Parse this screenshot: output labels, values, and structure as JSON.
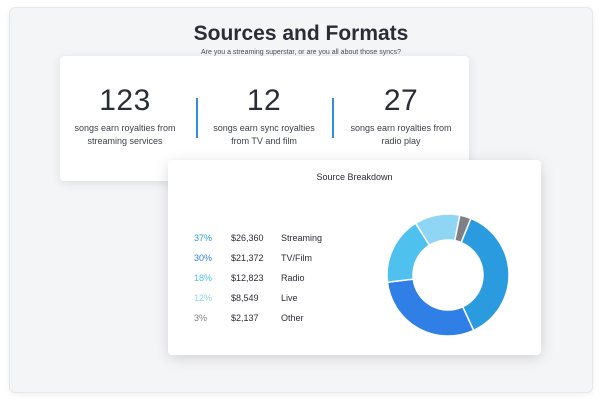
{
  "header": {
    "title": "Sources and Formats",
    "subtitle": "Are you a streaming superstar, or are you all about those syncs?"
  },
  "stats": [
    {
      "number": "123",
      "desc_line1": "songs earn royalties from",
      "desc_line2": "streaming services"
    },
    {
      "number": "12",
      "desc_line1": "songs earn sync royalties",
      "desc_line2": "from TV and film"
    },
    {
      "number": "27",
      "desc_line1": "songs earn royalties from",
      "desc_line2": "radio play"
    }
  ],
  "breakdown": {
    "title": "Source Breakdown",
    "rows": [
      {
        "percent": "37%",
        "amount": "$26,360",
        "source": "Streaming",
        "color": "#2a9bde"
      },
      {
        "percent": "30%",
        "amount": "$21,372",
        "source": "TV/Film",
        "color": "#2f7fe6"
      },
      {
        "percent": "18%",
        "amount": "$12,823",
        "source": "Radio",
        "color": "#4fc1ee"
      },
      {
        "percent": "12%",
        "amount": "$8,549",
        "source": "Live",
        "color": "#8fd6f5"
      },
      {
        "percent": "3%",
        "amount": "$2,137",
        "source": "Other",
        "color": "#7f8085"
      }
    ]
  },
  "chart_data": {
    "type": "pie",
    "categories": [
      "Streaming",
      "TV/Film",
      "Radio",
      "Live",
      "Other"
    ],
    "values": [
      37,
      30,
      18,
      12,
      3
    ],
    "colors": [
      "#2a9bde",
      "#2f7fe6",
      "#4fc1ee",
      "#8fd6f5",
      "#7f8085"
    ]
  }
}
